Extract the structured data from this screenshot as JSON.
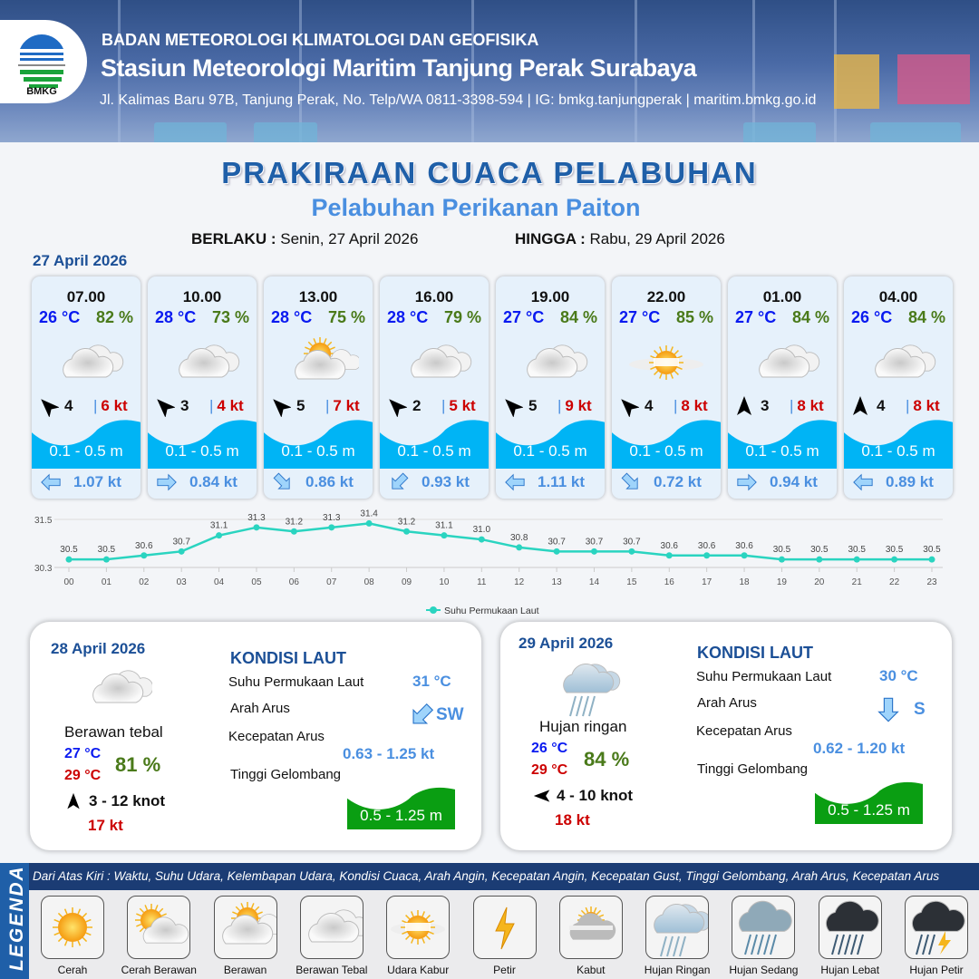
{
  "header": {
    "org": "BADAN METEOROLOGI KLIMATOLOGI DAN GEOFISIKA",
    "station": "Stasiun Meteorologi Maritim Tanjung Perak Surabaya",
    "address": "Jl. Kalimas Baru 97B, Tanjung Perak, No. Telp/WA 0811-3398-594 | IG: bmkg.tanjungperak | maritim.bmkg.go.id",
    "logo_text": "BMKG"
  },
  "title": "PRAKIRAAN CUACA PELABUHAN",
  "subtitle": "Pelabuhan Perikanan Paiton",
  "validity": {
    "from_label": "BERLAKU :",
    "from": "Senin, 27 April 2026",
    "to_label": "HINGGA :",
    "to": "Rabu, 29 April 2026"
  },
  "day1": {
    "date": "27 April 2026",
    "slots": [
      {
        "time": "07.00",
        "temp": "26 °C",
        "hum": "82 %",
        "icon": "berawan-tebal",
        "wind_arrow_deg": -45,
        "wind": "4",
        "gust": "6 kt",
        "wave": "0.1 - 0.5 m",
        "current_arrow_deg": 180,
        "current": "1.07 kt"
      },
      {
        "time": "10.00",
        "temp": "28 °C",
        "hum": "73 %",
        "icon": "berawan-tebal",
        "wind_arrow_deg": -45,
        "wind": "3",
        "gust": "4 kt",
        "wave": "0.1 - 0.5 m",
        "current_arrow_deg": 0,
        "current": "0.84 kt"
      },
      {
        "time": "13.00",
        "temp": "28 °C",
        "hum": "75 %",
        "icon": "berawan",
        "wind_arrow_deg": -45,
        "wind": "5",
        "gust": "7 kt",
        "wave": "0.1 - 0.5 m",
        "current_arrow_deg": 45,
        "current": "0.86 kt"
      },
      {
        "time": "16.00",
        "temp": "28 °C",
        "hum": "79 %",
        "icon": "berawan-tebal",
        "wind_arrow_deg": -45,
        "wind": "2",
        "gust": "5 kt",
        "wave": "0.1 - 0.5 m",
        "current_arrow_deg": 135,
        "current": "0.93 kt"
      },
      {
        "time": "19.00",
        "temp": "27 °C",
        "hum": "84 %",
        "icon": "berawan-tebal",
        "wind_arrow_deg": -45,
        "wind": "5",
        "gust": "9 kt",
        "wave": "0.1 - 0.5 m",
        "current_arrow_deg": 180,
        "current": "1.11 kt"
      },
      {
        "time": "22.00",
        "temp": "27 °C",
        "hum": "85 %",
        "icon": "udara-kabur",
        "wind_arrow_deg": -45,
        "wind": "4",
        "gust": "8 kt",
        "wave": "0.1 - 0.5 m",
        "current_arrow_deg": 45,
        "current": "0.72 kt"
      },
      {
        "time": "01.00",
        "temp": "27 °C",
        "hum": "84 %",
        "icon": "berawan-tebal",
        "wind_arrow_deg": 0,
        "wind": "3",
        "gust": "8 kt",
        "wave": "0.1 - 0.5 m",
        "current_arrow_deg": 0,
        "current": "0.94 kt"
      },
      {
        "time": "04.00",
        "temp": "26 °C",
        "hum": "84 %",
        "icon": "berawan-tebal",
        "wind_arrow_deg": 0,
        "wind": "4",
        "gust": "8 kt",
        "wave": "0.1 - 0.5 m",
        "current_arrow_deg": 180,
        "current": "0.89 kt"
      }
    ]
  },
  "chart_data": {
    "type": "line",
    "x": [
      "00",
      "01",
      "02",
      "03",
      "04",
      "05",
      "06",
      "07",
      "08",
      "09",
      "10",
      "11",
      "12",
      "13",
      "14",
      "15",
      "16",
      "17",
      "18",
      "19",
      "20",
      "21",
      "22",
      "23"
    ],
    "series": [
      {
        "name": "Suhu Permukaan Laut",
        "values": [
          30.5,
          30.5,
          30.6,
          30.7,
          31.1,
          31.3,
          31.2,
          31.3,
          31.4,
          31.2,
          31.1,
          31.0,
          30.8,
          30.7,
          30.7,
          30.7,
          30.6,
          30.6,
          30.6,
          30.5,
          30.5,
          30.5,
          30.5,
          30.5
        ]
      }
    ],
    "y_ticks": [
      "31.5",
      "30.3"
    ],
    "ylim": [
      30.3,
      31.5
    ],
    "grid": true,
    "legend": "bottom",
    "color": "#2ad4c0"
  },
  "days": [
    {
      "date": "28 April 2026",
      "icon": "berawan-tebal",
      "condition": "Berawan tebal",
      "tmin": "27 °C",
      "tmax": "29 °C",
      "hum": "81 %",
      "wind_arrow_deg": 0,
      "wind": "3  - 12 knot",
      "gust": "17 kt",
      "sea": {
        "title": "KONDISI LAUT",
        "sst_label": "Suhu Permukaan Laut",
        "sst": "31 °C",
        "dir_label": "Arah Arus",
        "dir": "SW",
        "dir_arrow_deg": 135,
        "speed_label": "Kecepatan Arus",
        "speed": "0.63  - 1.25 kt",
        "wave_label": "Tinggi Gelombang",
        "wave": "0.5 - 1.25 m"
      }
    },
    {
      "date": "29 April 2026",
      "icon": "hujan-ringan",
      "condition": "Hujan ringan",
      "tmin": "26 °C",
      "tmax": "29 °C",
      "hum": "84 %",
      "wind_arrow_deg": -90,
      "wind": "4  - 10 knot",
      "gust": "18 kt",
      "sea": {
        "title": "KONDISI LAUT",
        "sst_label": "Suhu Permukaan Laut",
        "sst": "30 °C",
        "dir_label": "Arah Arus",
        "dir": "S",
        "dir_arrow_deg": 90,
        "speed_label": "Kecepatan Arus",
        "speed": "0.62 - 1.20 kt",
        "wave_label": "Tinggi Gelombang",
        "wave": "0.5 - 1.25 m"
      }
    }
  ],
  "legend": {
    "side_label": "LEGENDA",
    "description": "Dari Atas Kiri : Waktu, Suhu Udara, Kelembapan Udara, Kondisi Cuaca, Arah Angin, Kecepatan Angin, Kecepatan Gust, Tinggi Gelombang, Arah Arus, Kecepatan Arus",
    "items": [
      {
        "label": "Cerah",
        "icon": "cerah"
      },
      {
        "label": "Cerah Berawan",
        "icon": "cerah-berawan"
      },
      {
        "label": "Berawan",
        "icon": "berawan"
      },
      {
        "label": "Berawan Tebal",
        "icon": "berawan-tebal"
      },
      {
        "label": "Udara Kabur",
        "icon": "udara-kabur"
      },
      {
        "label": "Petir",
        "icon": "petir"
      },
      {
        "label": "Kabut",
        "icon": "kabut"
      },
      {
        "label": "Hujan Ringan",
        "icon": "hujan-ringan"
      },
      {
        "label": "Hujan Sedang",
        "icon": "hujan-sedang"
      },
      {
        "label": "Hujan Lebat",
        "icon": "hujan-lebat"
      },
      {
        "label": "Hujan Petir",
        "icon": "hujan-petir"
      }
    ]
  },
  "colors": {
    "temp": "#0a1af0",
    "humidity": "#4a7a1a",
    "gust": "#cc0000",
    "wave": "#00b4f5",
    "wave_daily": "#0a9e12",
    "current": "#4a8fe0",
    "title": "#1f5fa8"
  }
}
